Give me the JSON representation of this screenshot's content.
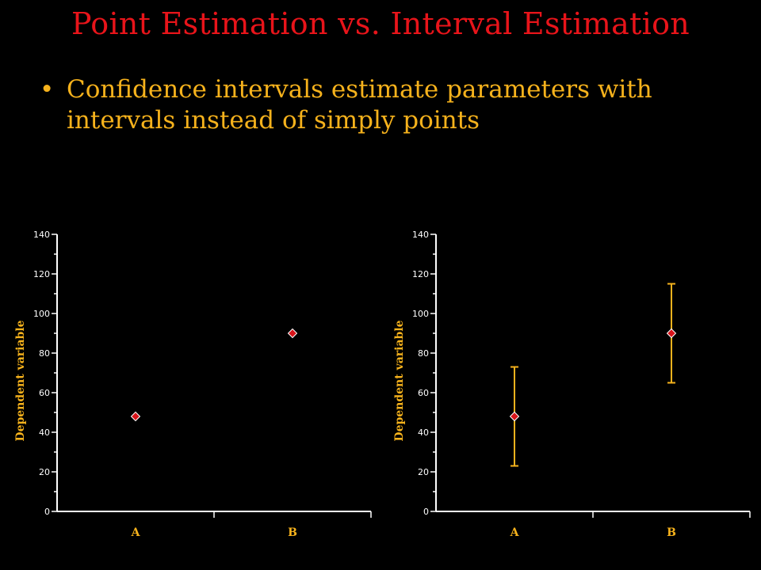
{
  "slide": {
    "title": "Point Estimation vs. Interval Estimation",
    "bullet_marker": "•",
    "bullet_text": "Confidence intervals estimate parameters with intervals instead of simply points"
  },
  "colors": {
    "background": "#000000",
    "title": "#e8141a",
    "bullet_text": "#f6b21c",
    "axis": "#ffffff",
    "marker": "#d7141a",
    "error_bar": "#f6b21c"
  },
  "chart_data": [
    {
      "type": "scatter",
      "title": "",
      "xlabel": "",
      "ylabel": "Dependent variable",
      "categories": [
        "A",
        "B"
      ],
      "values": [
        48,
        90
      ],
      "ylim": [
        0,
        140
      ],
      "yticks": [
        0,
        20,
        40,
        60,
        80,
        100,
        120,
        140
      ],
      "marker": "diamond",
      "grid": false
    },
    {
      "type": "scatter",
      "title": "",
      "xlabel": "",
      "ylabel": "Dependent variable",
      "categories": [
        "A",
        "B"
      ],
      "values": [
        48,
        90
      ],
      "error_low": [
        23,
        65
      ],
      "error_high": [
        73,
        115
      ],
      "ylim": [
        0,
        140
      ],
      "yticks": [
        0,
        20,
        40,
        60,
        80,
        100,
        120,
        140
      ],
      "marker": "diamond",
      "grid": false
    }
  ]
}
